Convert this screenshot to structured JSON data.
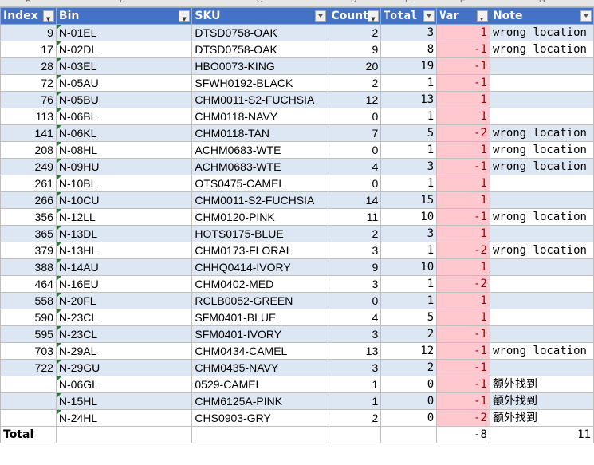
{
  "column_letters": [
    "A",
    "B",
    "C",
    "D",
    "E",
    "F",
    "G"
  ],
  "headers": {
    "index": "Index",
    "bin": "Bin",
    "sku": "SKU",
    "count": "Count",
    "total": "Total",
    "var": "Var",
    "note": "Note"
  },
  "rows": [
    {
      "index": "9",
      "bin": "N-01EL",
      "sku": "DTSD0758-OAK",
      "count": "2",
      "total": "3",
      "var": "1",
      "note": "wrong location"
    },
    {
      "index": "17",
      "bin": "N-02DL",
      "sku": "DTSD0758-OAK",
      "count": "9",
      "total": "8",
      "var": "-1",
      "note": "wrong location"
    },
    {
      "index": "28",
      "bin": "N-03EL",
      "sku": "HBO0073-KING",
      "count": "20",
      "total": "19",
      "var": "-1",
      "note": ""
    },
    {
      "index": "72",
      "bin": "N-05AU",
      "sku": "SFWH0192-BLACK",
      "count": "2",
      "total": "1",
      "var": "-1",
      "note": ""
    },
    {
      "index": "76",
      "bin": "N-05BU",
      "sku": "CHM0011-S2-FUCHSIA",
      "count": "12",
      "total": "13",
      "var": "1",
      "note": ""
    },
    {
      "index": "113",
      "bin": "N-06BL",
      "sku": "CHM0118-NAVY",
      "count": "0",
      "total": "1",
      "var": "1",
      "note": ""
    },
    {
      "index": "141",
      "bin": "N-06KL",
      "sku": "CHM0118-TAN",
      "count": "7",
      "total": "5",
      "var": "-2",
      "note": "wrong location"
    },
    {
      "index": "208",
      "bin": "N-08HL",
      "sku": "ACHM0683-WTE",
      "count": "0",
      "total": "1",
      "var": "1",
      "note": "wrong location"
    },
    {
      "index": "249",
      "bin": "N-09HU",
      "sku": "ACHM0683-WTE",
      "count": "4",
      "total": "3",
      "var": "-1",
      "note": "wrong location"
    },
    {
      "index": "261",
      "bin": "N-10BL",
      "sku": "OTS0475-CAMEL",
      "count": "0",
      "total": "1",
      "var": "1",
      "note": ""
    },
    {
      "index": "266",
      "bin": "N-10CU",
      "sku": "CHM0011-S2-FUCHSIA",
      "count": "14",
      "total": "15",
      "var": "1",
      "note": ""
    },
    {
      "index": "356",
      "bin": "N-12LL",
      "sku": "CHM0120-PINK",
      "count": "11",
      "total": "10",
      "var": "-1",
      "note": "wrong location"
    },
    {
      "index": "365",
      "bin": "N-13DL",
      "sku": "HOTS0175-BLUE",
      "count": "2",
      "total": "3",
      "var": "1",
      "note": ""
    },
    {
      "index": "379",
      "bin": "N-13HL",
      "sku": "CHM0173-FLORAL",
      "count": "3",
      "total": "1",
      "var": "-2",
      "note": "wrong location"
    },
    {
      "index": "388",
      "bin": "N-14AU",
      "sku": "CHHQ0414-IVORY",
      "count": "9",
      "total": "10",
      "var": "1",
      "note": ""
    },
    {
      "index": "464",
      "bin": "N-16EU",
      "sku": "CHM0402-MED",
      "count": "3",
      "total": "1",
      "var": "-2",
      "note": ""
    },
    {
      "index": "558",
      "bin": "N-20FL",
      "sku": "RCLB0052-GREEN",
      "count": "0",
      "total": "1",
      "var": "1",
      "note": ""
    },
    {
      "index": "590",
      "bin": "N-23CL",
      "sku": "SFM0401-BLUE",
      "count": "4",
      "total": "5",
      "var": "1",
      "note": ""
    },
    {
      "index": "595",
      "bin": "N-23CL",
      "sku": "SFM0401-IVORY",
      "count": "3",
      "total": "2",
      "var": "-1",
      "note": ""
    },
    {
      "index": "703",
      "bin": "N-29AL",
      "sku": "CHM0434-CAMEL",
      "count": "13",
      "total": "12",
      "var": "-1",
      "note": "wrong location"
    },
    {
      "index": "722",
      "bin": "N-29GU",
      "sku": "CHM0435-NAVY",
      "count": "3",
      "total": "2",
      "var": "-1",
      "note": ""
    },
    {
      "index": "",
      "bin": "N-06GL",
      "sku": "0529-CAMEL",
      "count": "1",
      "total": "0",
      "var": "-1",
      "note": "额外找到"
    },
    {
      "index": "",
      "bin": "N-15HL",
      "sku": "CHM6125A-PINK",
      "count": "1",
      "total": "0",
      "var": "-1",
      "note": "额外找到"
    },
    {
      "index": "",
      "bin": "N-24HL",
      "sku": "CHS0903-GRY",
      "count": "2",
      "total": "0",
      "var": "-2",
      "note": "额外找到"
    }
  ],
  "totals": {
    "label": "Total",
    "var": "-8",
    "note": "11"
  },
  "colors": {
    "header_bg": "#4472c4",
    "band_bg": "#dde6f3",
    "var_bg": "#ffc7ce",
    "var_text": "#9c0006"
  }
}
